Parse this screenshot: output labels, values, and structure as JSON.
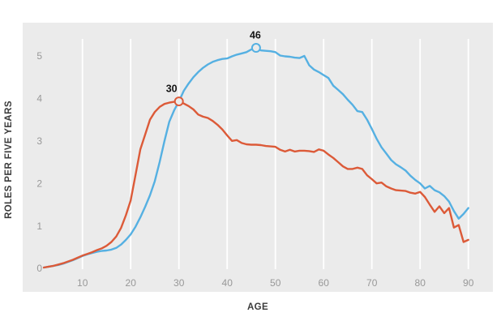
{
  "page": {
    "background": "#ffffff"
  },
  "chart_data": {
    "type": "line",
    "title": "",
    "xlabel": "AGE",
    "ylabel": "ROLES PER FIVE YEARS",
    "xlim": [
      0,
      95
    ],
    "ylim": [
      0,
      5.8
    ],
    "x_ticks": [
      10,
      20,
      30,
      40,
      50,
      60,
      70,
      80,
      90
    ],
    "y_ticks": [
      0,
      1,
      2,
      3,
      4,
      5
    ],
    "grid": "vertical-only",
    "legend": "none",
    "plot_bg": "#ebebeb",
    "grid_color": "#ffffff",
    "tick_color": "#989898",
    "axis_title_color": "#3b3b3b",
    "annotation_color": "#141414",
    "x": [
      2,
      3,
      4,
      5,
      6,
      7,
      8,
      9,
      10,
      11,
      12,
      13,
      14,
      15,
      16,
      17,
      18,
      19,
      20,
      21,
      22,
      23,
      24,
      25,
      26,
      27,
      28,
      29,
      30,
      31,
      32,
      33,
      34,
      35,
      36,
      37,
      38,
      39,
      40,
      41,
      42,
      43,
      44,
      45,
      46,
      47,
      48,
      49,
      50,
      51,
      52,
      53,
      54,
      55,
      56,
      57,
      58,
      59,
      60,
      61,
      62,
      63,
      64,
      65,
      66,
      67,
      68,
      69,
      70,
      71,
      72,
      73,
      74,
      75,
      76,
      77,
      78,
      79,
      80,
      81,
      82,
      83,
      84,
      85,
      86,
      87,
      88,
      89,
      90
    ],
    "series": [
      {
        "name": "blue",
        "color": "#55b0e2",
        "peak_age": 46,
        "values": [
          0.02,
          0.04,
          0.06,
          0.08,
          0.11,
          0.15,
          0.19,
          0.24,
          0.29,
          0.33,
          0.36,
          0.39,
          0.41,
          0.42,
          0.44,
          0.48,
          0.56,
          0.67,
          0.8,
          0.98,
          1.2,
          1.45,
          1.72,
          2.05,
          2.5,
          3.0,
          3.45,
          3.72,
          3.93,
          4.18,
          4.35,
          4.5,
          4.62,
          4.72,
          4.8,
          4.86,
          4.9,
          4.93,
          4.94,
          4.99,
          5.03,
          5.06,
          5.09,
          5.15,
          5.19,
          5.13,
          5.12,
          5.11,
          5.09,
          5.01,
          4.99,
          4.98,
          4.96,
          4.95,
          5.0,
          4.78,
          4.68,
          4.62,
          4.55,
          4.48,
          4.3,
          4.2,
          4.1,
          3.97,
          3.85,
          3.7,
          3.68,
          3.5,
          3.28,
          3.05,
          2.85,
          2.7,
          2.55,
          2.45,
          2.38,
          2.3,
          2.18,
          2.08,
          2.0,
          1.88,
          1.94,
          1.84,
          1.79,
          1.7,
          1.57,
          1.35,
          1.17,
          1.28,
          1.42
        ]
      },
      {
        "name": "orange",
        "color": "#dc5a38",
        "peak_age": 30,
        "values": [
          0.02,
          0.04,
          0.06,
          0.09,
          0.12,
          0.16,
          0.2,
          0.25,
          0.3,
          0.34,
          0.38,
          0.43,
          0.47,
          0.53,
          0.62,
          0.75,
          0.95,
          1.25,
          1.6,
          2.2,
          2.8,
          3.15,
          3.5,
          3.68,
          3.8,
          3.87,
          3.9,
          3.92,
          3.93,
          3.88,
          3.82,
          3.74,
          3.62,
          3.57,
          3.54,
          3.47,
          3.38,
          3.27,
          3.13,
          3.0,
          3.02,
          2.95,
          2.92,
          2.91,
          2.91,
          2.9,
          2.88,
          2.87,
          2.86,
          2.79,
          2.75,
          2.79,
          2.75,
          2.77,
          2.77,
          2.76,
          2.74,
          2.8,
          2.77,
          2.68,
          2.6,
          2.5,
          2.4,
          2.34,
          2.34,
          2.37,
          2.34,
          2.19,
          2.1,
          2.0,
          2.02,
          1.93,
          1.88,
          1.84,
          1.83,
          1.82,
          1.78,
          1.76,
          1.8,
          1.68,
          1.5,
          1.33,
          1.46,
          1.3,
          1.42,
          0.96,
          1.02,
          0.62,
          0.67
        ]
      }
    ],
    "annotations": [
      {
        "label": "30",
        "series": 1,
        "age": 30,
        "value": 3.93
      },
      {
        "label": "46",
        "series": 0,
        "age": 46,
        "value": 5.19
      }
    ]
  }
}
